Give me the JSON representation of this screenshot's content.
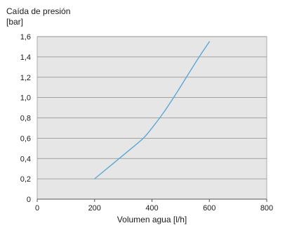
{
  "chart_data": {
    "type": "line",
    "title": "",
    "ylabel_lines": [
      "Caída de presión",
      "[bar]"
    ],
    "xlabel": "Volumen agua [l/h]",
    "xlim": [
      0,
      800
    ],
    "ylim": [
      0,
      1.6
    ],
    "x_ticks": [
      0,
      200,
      400,
      600,
      800
    ],
    "x_tick_labels": [
      "0",
      "200",
      "400",
      "600",
      "800"
    ],
    "y_ticks": [
      0,
      0.2,
      0.4,
      0.6,
      0.8,
      1.0,
      1.2,
      1.4,
      1.6
    ],
    "y_tick_labels": [
      "0",
      "0,2",
      "0,4",
      "0,6",
      "0,8",
      "1,0",
      "1,2",
      "1,4",
      "1,6"
    ],
    "grid": "horizontal",
    "legend": "none",
    "plot_background": "#e6e6e6",
    "series": [
      {
        "color": "#5aa7d6",
        "x": [
          200,
          260,
          320,
          370,
          400,
          440,
          480,
          520,
          560,
          600
        ],
        "y": [
          0.2,
          0.34,
          0.48,
          0.6,
          0.7,
          0.85,
          1.02,
          1.2,
          1.38,
          1.55
        ]
      }
    ]
  }
}
